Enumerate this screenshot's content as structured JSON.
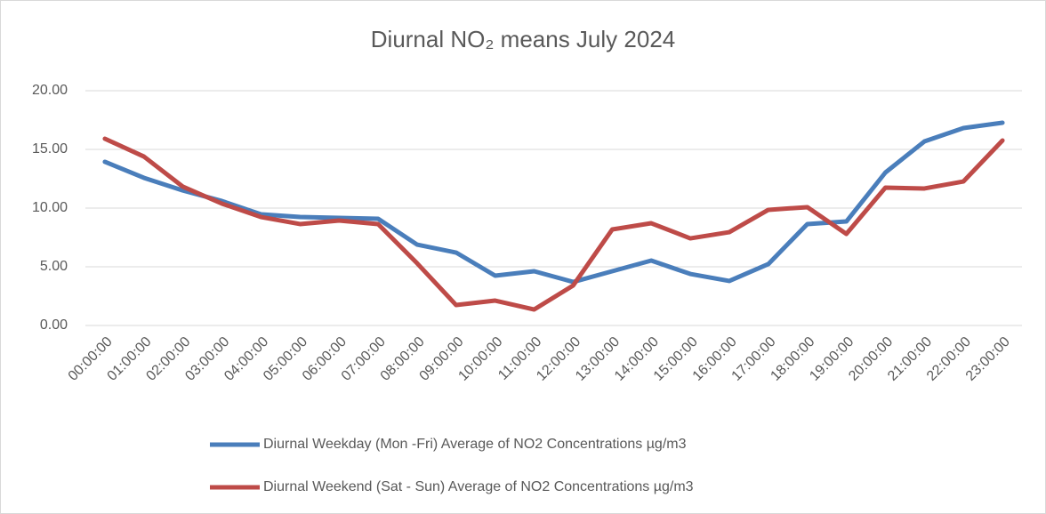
{
  "chart_data": {
    "type": "line",
    "title": "Diurnal NO₂ means July 2024",
    "categories": [
      "00:00:00",
      "01:00:00",
      "02:00:00",
      "03:00:00",
      "04:00:00",
      "05:00:00",
      "06:00:00",
      "07:00:00",
      "08:00:00",
      "09:00:00",
      "10:00:00",
      "11:00:00",
      "12:00:00",
      "13:00:00",
      "14:00:00",
      "15:00:00",
      "16:00:00",
      "17:00:00",
      "18:00:00",
      "19:00:00",
      "20:00:00",
      "21:00:00",
      "22:00:00",
      "23:00:00"
    ],
    "series": [
      {
        "name": "Diurnal Weekday (Mon -Fri) Average of NO2 Concentrations µg/m3",
        "color": "#4a7ebb",
        "values": [
          13.94,
          12.58,
          11.5,
          10.6,
          9.47,
          9.24,
          9.17,
          9.09,
          6.89,
          6.21,
          4.24,
          4.62,
          3.71,
          4.62,
          5.53,
          4.39,
          3.79,
          5.23,
          8.64,
          8.86,
          13.03,
          15.68,
          16.82,
          17.27
        ]
      },
      {
        "name": "Diurnal Weekend (Sat - Sun) Average of NO2 Concentrations µg/m3",
        "color": "#be4b48",
        "values": [
          15.91,
          14.39,
          11.82,
          10.38,
          9.24,
          8.64,
          8.94,
          8.64,
          5.3,
          1.74,
          2.12,
          1.36,
          3.41,
          8.18,
          8.71,
          7.42,
          7.95,
          9.85,
          10.08,
          7.8,
          11.74,
          11.67,
          12.27,
          15.76
        ]
      }
    ],
    "ylim": [
      0,
      20
    ],
    "yticks": [
      {
        "value": 0,
        "label": "0.00"
      },
      {
        "value": 5,
        "label": "5.00"
      },
      {
        "value": 10,
        "label": "10.00"
      },
      {
        "value": 15,
        "label": "15.00"
      },
      {
        "value": 20,
        "label": "20.00"
      }
    ],
    "grid": true
  }
}
